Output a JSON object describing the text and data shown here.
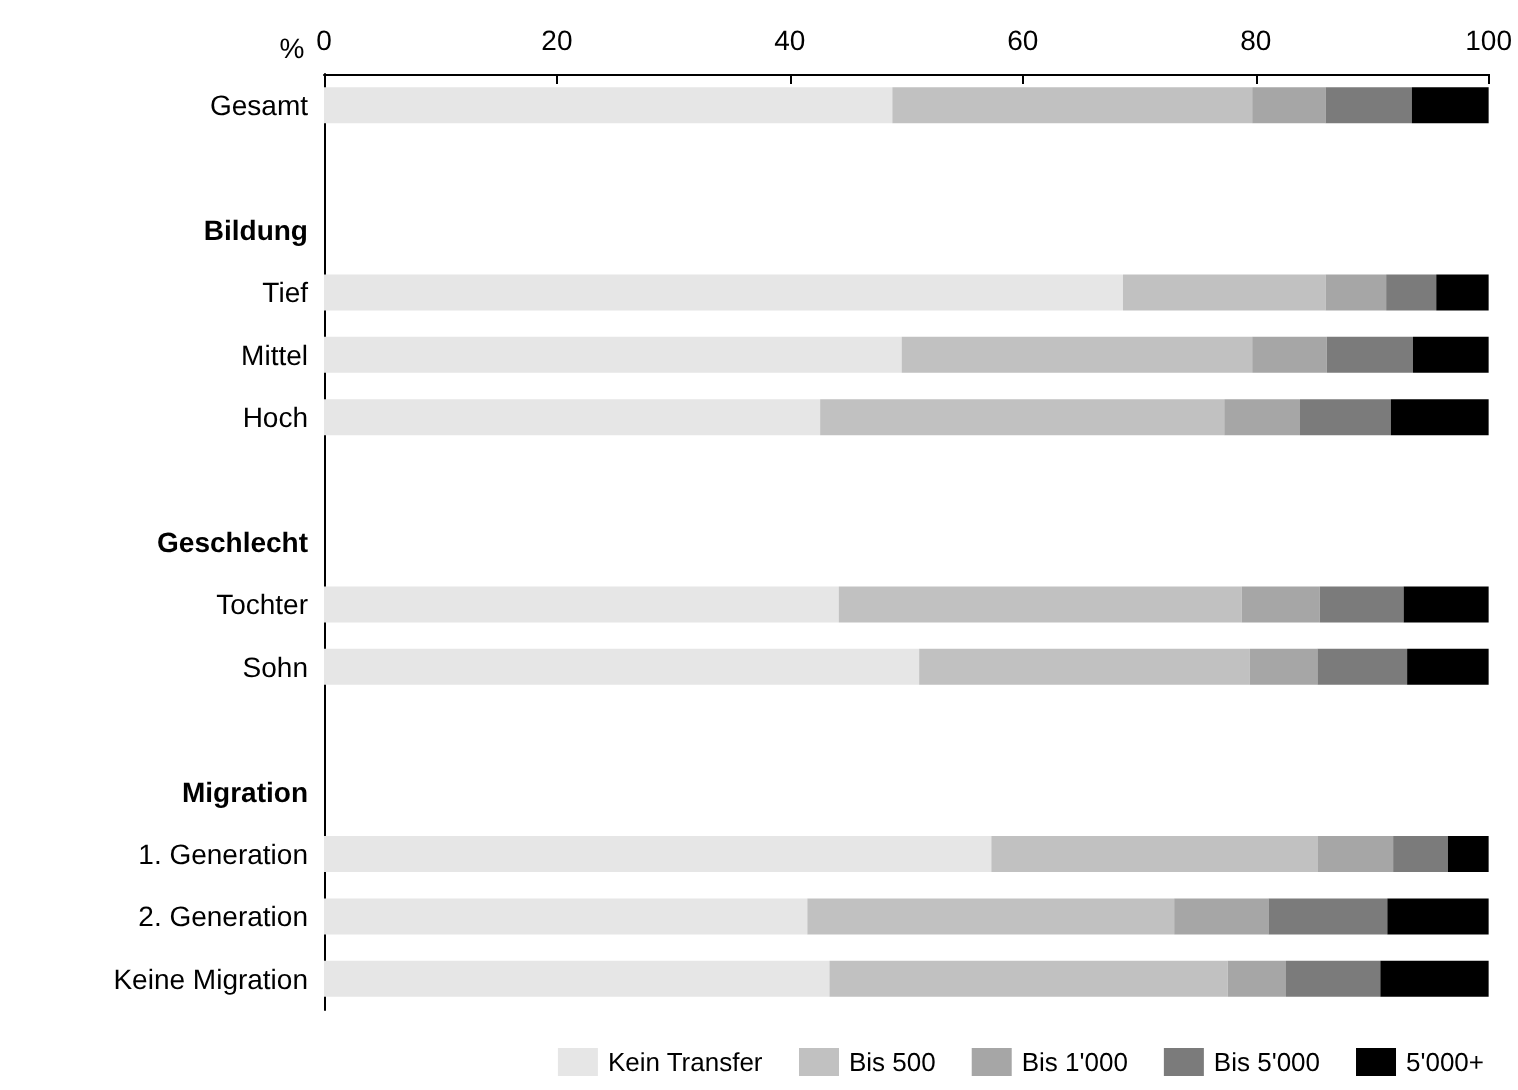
{
  "chart_data": {
    "type": "bar",
    "orientation": "horizontal",
    "stacked": true,
    "xlabel": "%",
    "categories": [
      "Gesamt",
      null,
      "Bildung",
      "Tief",
      "Mittel",
      "Hoch",
      null,
      "Geschlecht",
      "Tochter",
      "Sohn",
      null,
      "Migration",
      "1. Generation",
      "2. Generation",
      "Keine Migration"
    ],
    "series": [
      {
        "name": "Kein Transfer",
        "color": "#e6e6e6",
        "values": [
          48.8,
          null,
          null,
          68.6,
          49.6,
          42.6,
          null,
          null,
          44.2,
          51.1,
          null,
          null,
          57.3,
          41.5,
          43.4
        ]
      },
      {
        "name": "Bis 500",
        "color": "#c1c1c1",
        "values": [
          30.9,
          null,
          null,
          17.4,
          30.1,
          34.7,
          null,
          null,
          34.6,
          28.4,
          null,
          null,
          28.0,
          31.5,
          34.2
        ]
      },
      {
        "name": "Bis 1'000",
        "color": "#a6a6a6",
        "values": [
          6.3,
          null,
          null,
          5.2,
          6.4,
          6.5,
          null,
          null,
          6.7,
          5.8,
          null,
          null,
          6.5,
          8.1,
          5.0
        ]
      },
      {
        "name": "Bis 5'000",
        "color": "#7b7b7b",
        "values": [
          7.4,
          null,
          null,
          4.3,
          7.4,
          7.8,
          null,
          null,
          7.2,
          7.7,
          null,
          null,
          4.7,
          10.2,
          8.1
        ]
      },
      {
        "name": "5'000+",
        "color": "#000000",
        "values": [
          6.6,
          null,
          null,
          4.5,
          6.5,
          8.4,
          null,
          null,
          7.3,
          7.0,
          null,
          null,
          3.5,
          8.7,
          9.3
        ]
      }
    ],
    "xlim": [
      0,
      100
    ],
    "xticks": [
      0,
      20,
      40,
      60,
      80,
      100
    ],
    "grid": false,
    "legend": "bottom"
  }
}
